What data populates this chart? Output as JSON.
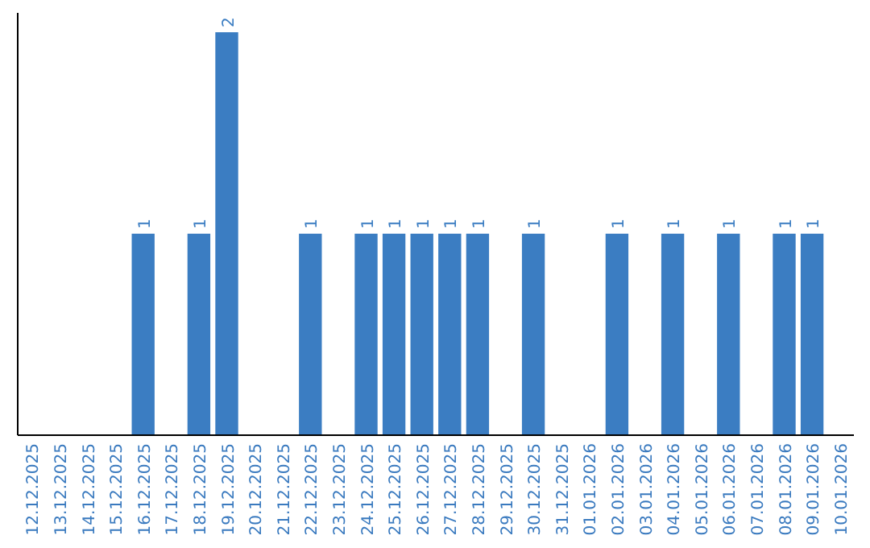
{
  "chart_data": {
    "type": "bar",
    "categories": [
      "12.12.2025",
      "13.12.2025",
      "14.12.2025",
      "15.12.2025",
      "16.12.2025",
      "17.12.2025",
      "18.12.2025",
      "19.12.2025",
      "20.12.2025",
      "21.12.2025",
      "22.12.2025",
      "23.12.2025",
      "24.12.2025",
      "25.12.2025",
      "26.12.2025",
      "27.12.2025",
      "28.12.2025",
      "29.12.2025",
      "30.12.2025",
      "31.12.2025",
      "01.01.2026",
      "02.01.2026",
      "03.01.2026",
      "04.01.2026",
      "05.01.2026",
      "06.01.2026",
      "07.01.2026",
      "08.01.2026",
      "09.01.2026",
      "10.01.2026"
    ],
    "values": [
      0,
      0,
      0,
      0,
      1,
      0,
      1,
      2,
      0,
      0,
      1,
      0,
      1,
      1,
      1,
      1,
      1,
      0,
      1,
      0,
      0,
      1,
      0,
      1,
      0,
      1,
      0,
      1,
      1,
      0
    ],
    "value_labels": [
      null,
      null,
      null,
      null,
      "1",
      null,
      "1",
      "2",
      null,
      null,
      "1",
      null,
      "1",
      "1",
      "1",
      "1",
      "1",
      null,
      "1",
      null,
      null,
      "1",
      null,
      "1",
      null,
      "1",
      null,
      "1",
      "1",
      null
    ],
    "color": "#3b7dc2",
    "ylim": [
      0,
      2
    ],
    "tick_labels": "x"
  }
}
